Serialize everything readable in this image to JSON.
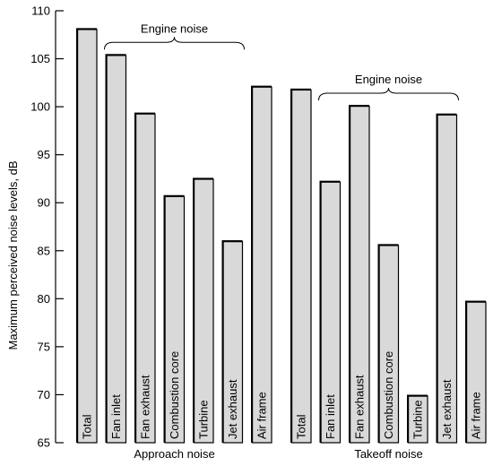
{
  "chart_data": {
    "type": "bar",
    "ylabel": "Maximum perceived noise levels, dB",
    "ylim": [
      65,
      110
    ],
    "yticks": [
      65,
      70,
      75,
      80,
      85,
      90,
      95,
      100,
      105,
      110
    ],
    "groups": [
      {
        "name": "Approach noise",
        "brace_label": "Engine noise",
        "categories": [
          "Total",
          "Fan inlet",
          "Fan exhaust",
          "Combustion core",
          "Turbine",
          "Jet exhaust",
          "Air frame"
        ],
        "values": [
          108.1,
          105.4,
          99.3,
          90.7,
          92.5,
          86.0,
          102.1
        ]
      },
      {
        "name": "Takeoff noise",
        "brace_label": "Engine noise",
        "categories": [
          "Total",
          "Fan inlet",
          "Fan exhaust",
          "Combustion core",
          "Turbine",
          "Jet exhaust",
          "Air frame"
        ],
        "values": [
          101.8,
          92.2,
          100.1,
          85.6,
          69.9,
          99.2,
          79.7
        ]
      }
    ],
    "grid": false,
    "legend": "none"
  }
}
